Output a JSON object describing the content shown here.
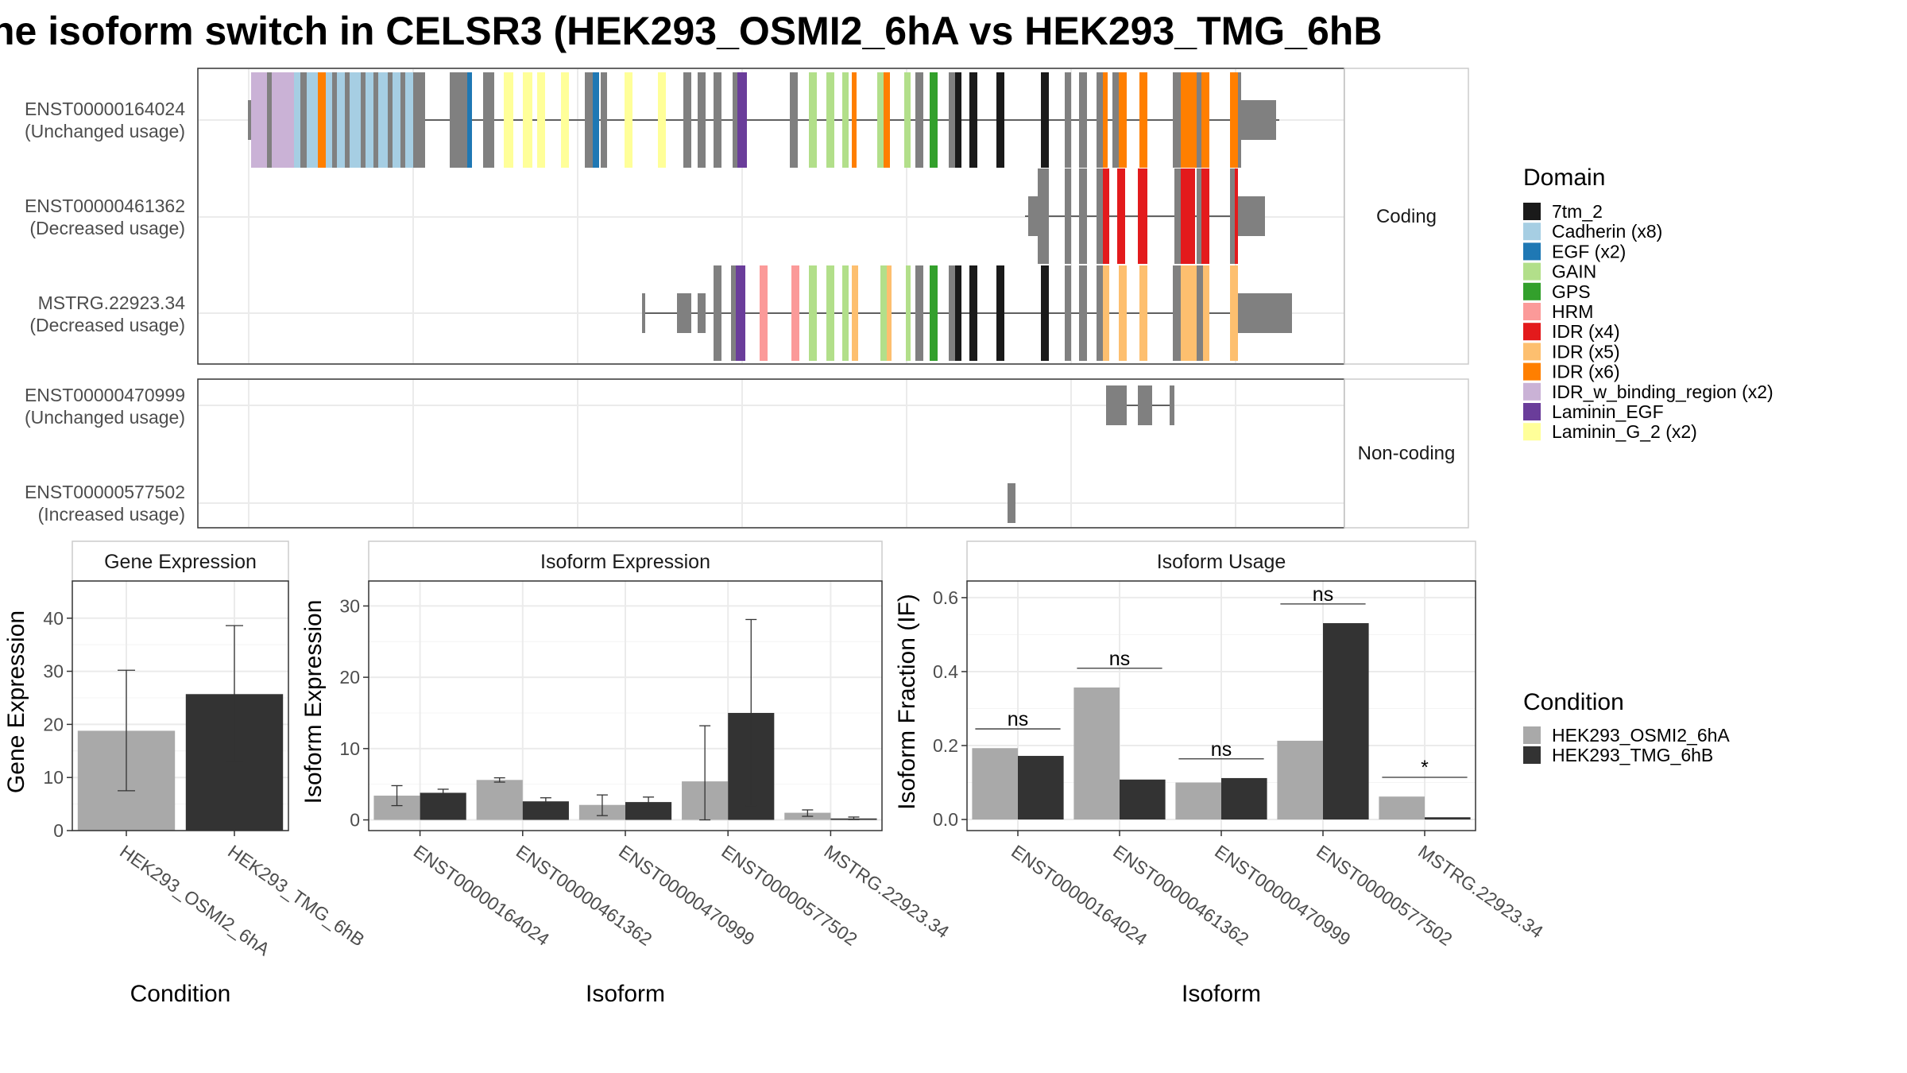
{
  "title": "he isoform switch in CELSR3 (HEK293_OSMI2_6hA vs HEK293_TMG_6hB",
  "structure": {
    "coding_label": "Coding",
    "noncoding_label": "Non-coding",
    "coding_isoforms": [
      {
        "id": "ENST00000164024",
        "usage": "(Unchanged usage)"
      },
      {
        "id": "ENST00000461362",
        "usage": "(Decreased usage)"
      },
      {
        "id": "MSTRG.22923.34",
        "usage": "(Decreased usage)"
      }
    ],
    "noncoding_isoforms": [
      {
        "id": "ENST00000470999",
        "usage": "(Unchanged usage)"
      },
      {
        "id": "ENST00000577502",
        "usage": "(Increased usage)"
      }
    ]
  },
  "legend_domain": {
    "title": "Domain",
    "items": [
      {
        "label": "7tm_2",
        "color": "#1a1a1a"
      },
      {
        "label": "Cadherin (x8)",
        "color": "#a6cee3"
      },
      {
        "label": "EGF (x2)",
        "color": "#1f78b4"
      },
      {
        "label": "GAIN",
        "color": "#b2df8a"
      },
      {
        "label": "GPS",
        "color": "#33a02c"
      },
      {
        "label": "HRM",
        "color": "#fb9a99"
      },
      {
        "label": "IDR (x4)",
        "color": "#e31a1c"
      },
      {
        "label": "IDR (x5)",
        "color": "#fdbf6f"
      },
      {
        "label": "IDR (x6)",
        "color": "#ff7f00"
      },
      {
        "label": "IDR_w_binding_region (x2)",
        "color": "#cab2d6"
      },
      {
        "label": "Laminin_EGF",
        "color": "#6a3d9a"
      },
      {
        "label": "Laminin_G_2 (x2)",
        "color": "#ffff99"
      }
    ]
  },
  "legend_condition": {
    "title": "Condition",
    "items": [
      {
        "label": "HEK293_OSMI2_6hA",
        "color": "#a9a9a9"
      },
      {
        "label": "HEK293_TMG_6hB",
        "color": "#333333"
      }
    ]
  },
  "chart_data": [
    {
      "type": "bar",
      "panel_title": "Gene Expression",
      "xlabel": "Condition",
      "ylabel": "Gene Expression",
      "ylim": [
        0,
        47
      ],
      "yticks": [
        0,
        10,
        20,
        30,
        40
      ],
      "categories": [
        "HEK293_OSMI2_6hA",
        "HEK293_TMG_6hB"
      ],
      "values": [
        18.8,
        25.7
      ],
      "error_low": [
        7.5,
        12.9
      ],
      "error_high": [
        30.2,
        38.6
      ]
    },
    {
      "type": "bar",
      "panel_title": "Isoform Expression",
      "xlabel": "Isoform",
      "ylabel": "Isoform Expression",
      "ylim": [
        -1.5,
        33.5
      ],
      "yticks": [
        0,
        10,
        20,
        30
      ],
      "categories": [
        "ENST00000164024",
        "ENST00000461362",
        "ENST00000470999",
        "ENST00000577502",
        "MSTRG.22923.34"
      ],
      "series": [
        {
          "name": "HEK293_OSMI2_6hA",
          "values": [
            3.4,
            5.6,
            2.1,
            5.4,
            1.0
          ],
          "error_low": [
            2.0,
            5.3,
            0.6,
            0.0,
            0.5
          ],
          "error_high": [
            4.8,
            5.9,
            3.5,
            13.2,
            1.4
          ]
        },
        {
          "name": "HEK293_TMG_6hB",
          "values": [
            3.8,
            2.6,
            2.5,
            15.0,
            0.2
          ],
          "error_low": [
            3.3,
            2.1,
            1.8,
            2.0,
            0.05
          ],
          "error_high": [
            4.3,
            3.1,
            3.2,
            28.1,
            0.4
          ]
        }
      ]
    },
    {
      "type": "bar",
      "panel_title": "Isoform Usage",
      "xlabel": "Isoform",
      "ylabel": "Isoform Fraction (IF)",
      "ylim": [
        -0.03,
        0.645
      ],
      "yticks": [
        0.0,
        0.2,
        0.4,
        0.6
      ],
      "ytick_labels": [
        "0.0",
        "0.2",
        "0.4",
        "0.6"
      ],
      "categories": [
        "ENST00000164024",
        "ENST00000461362",
        "ENST00000470999",
        "ENST00000577502",
        "MSTRG.22923.34"
      ],
      "series": [
        {
          "name": "HEK293_OSMI2_6hA",
          "values": [
            0.193,
            0.357,
            0.1,
            0.213,
            0.062
          ]
        },
        {
          "name": "HEK293_TMG_6hB",
          "values": [
            0.172,
            0.108,
            0.112,
            0.531,
            0.006
          ]
        }
      ],
      "significance": [
        "ns",
        "ns",
        "ns",
        "ns",
        "*"
      ]
    }
  ]
}
